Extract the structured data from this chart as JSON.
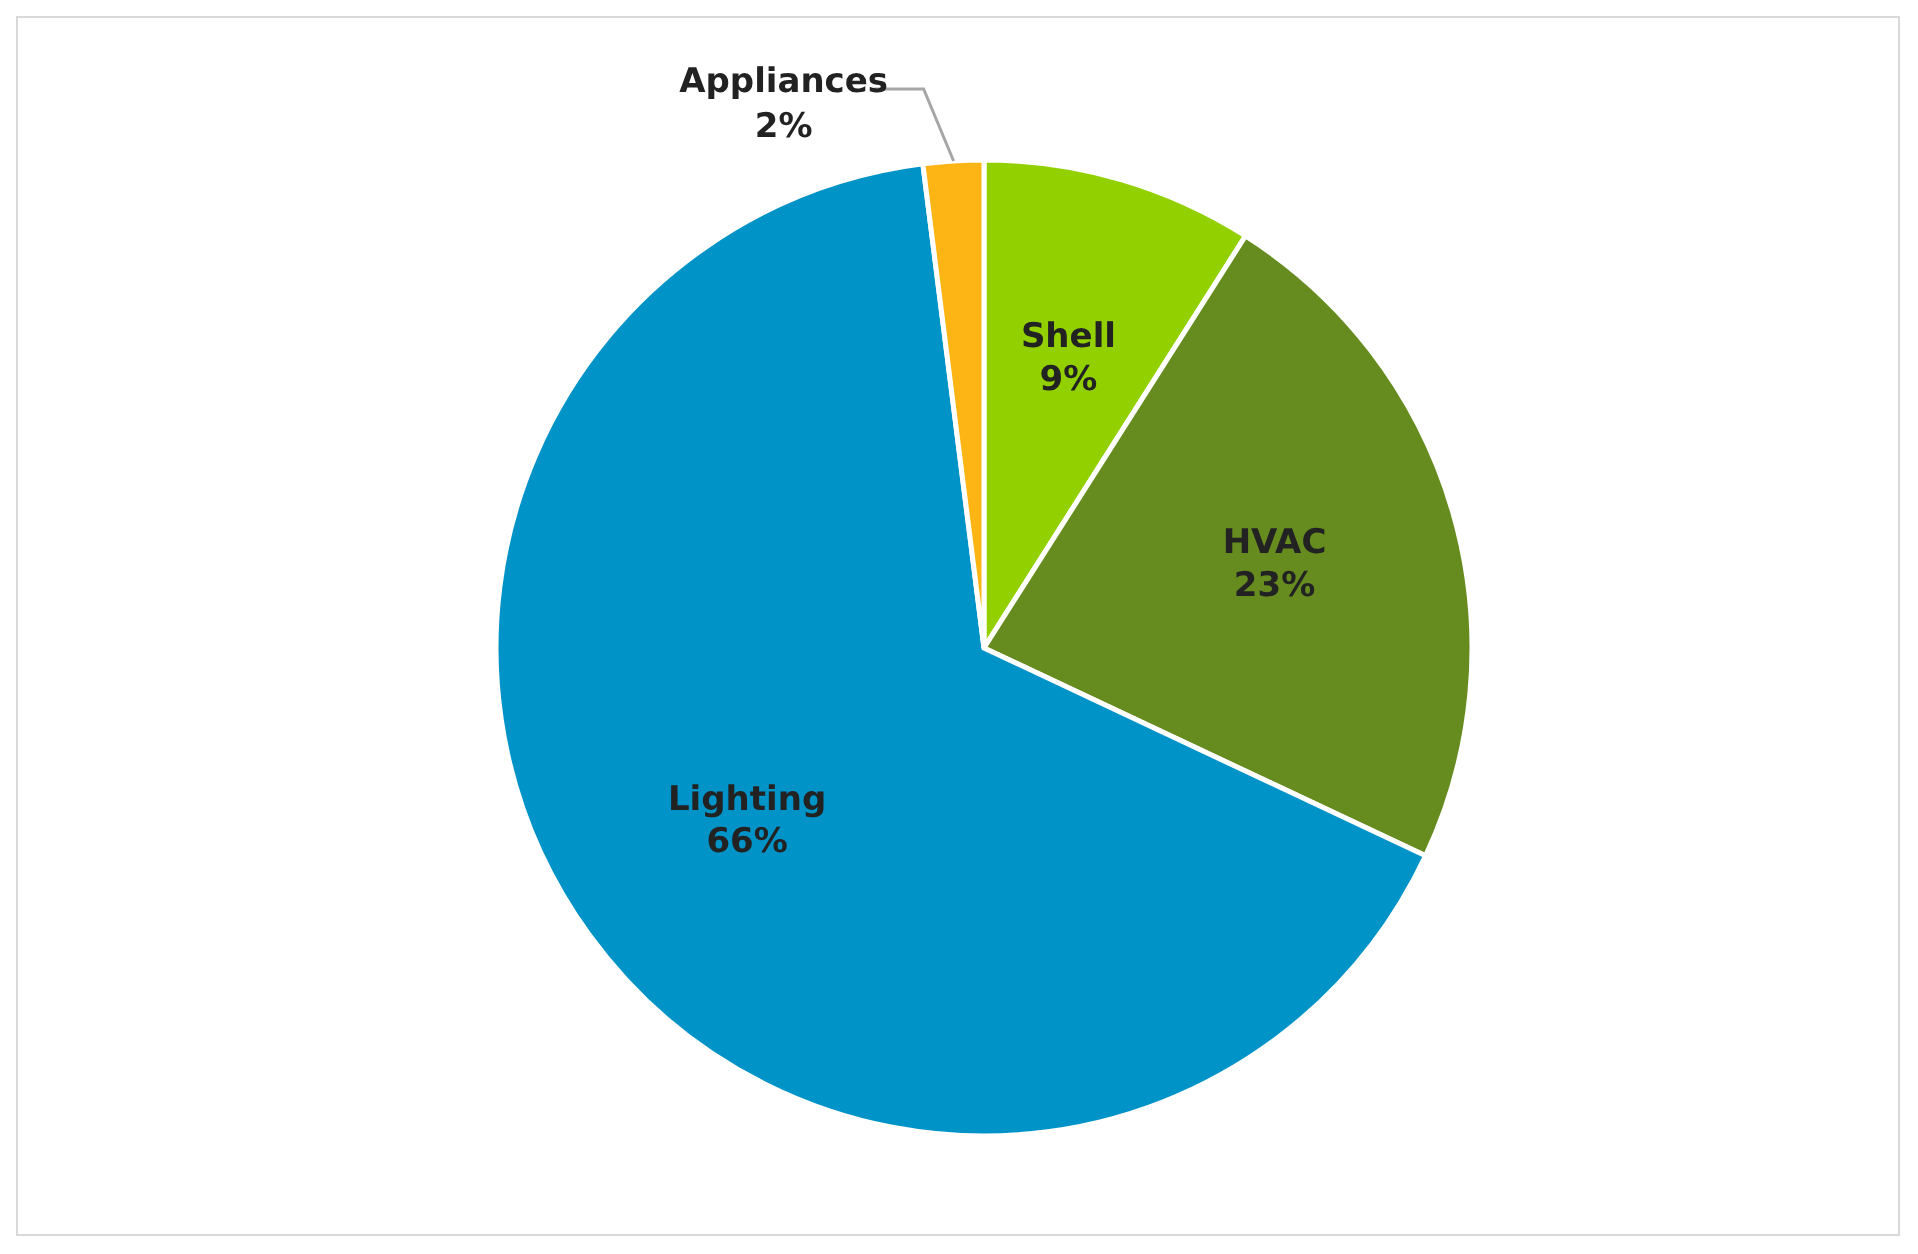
{
  "chart_data": {
    "type": "pie",
    "categories": [
      "Shell",
      "HVAC",
      "Lighting",
      "Appliances"
    ],
    "values": [
      9,
      23,
      66,
      2
    ],
    "value_labels": [
      "9%",
      "23%",
      "66%",
      "2%"
    ],
    "colors": [
      "#92d000",
      "#668c1f",
      "#0093c8",
      "#fdb515"
    ],
    "legend": false
  }
}
